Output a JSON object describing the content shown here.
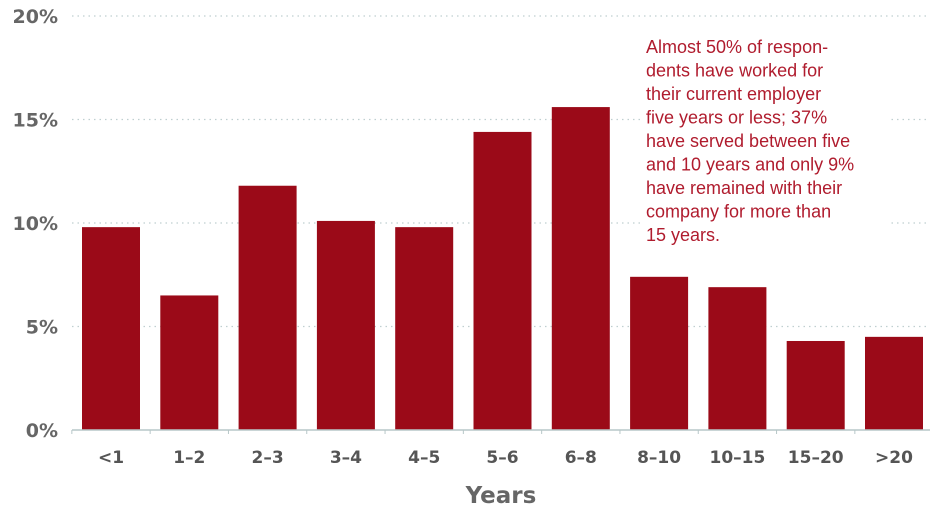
{
  "chart_data": {
    "type": "bar",
    "title": "",
    "xlabel": "Years",
    "ylabel": "",
    "categories": [
      "<1",
      "1–2",
      "2–3",
      "3–4",
      "4–5",
      "5–6",
      "6–8",
      "8–10",
      "10–15",
      "15–20",
      ">20"
    ],
    "values": [
      9.8,
      6.5,
      11.8,
      10.1,
      9.8,
      14.4,
      15.6,
      7.4,
      6.9,
      4.3,
      4.5
    ],
    "ylim": [
      0,
      20
    ],
    "yticks": [
      0,
      5,
      10,
      15,
      20
    ],
    "ytick_labels": [
      "0%",
      "5%",
      "10%",
      "15%",
      "20%"
    ],
    "grid": "horizontal dotted",
    "bar_color": "#9b0a18",
    "annotation": {
      "lines": [
        "Almost 50% of respon-",
        "dents have worked for",
        "their current employer",
        "five years or less; 37%",
        "have served between five",
        "and 10 years and only 9%",
        "have remained with their",
        "company for more than",
        "15 years."
      ],
      "color": "#b01c2e"
    }
  }
}
